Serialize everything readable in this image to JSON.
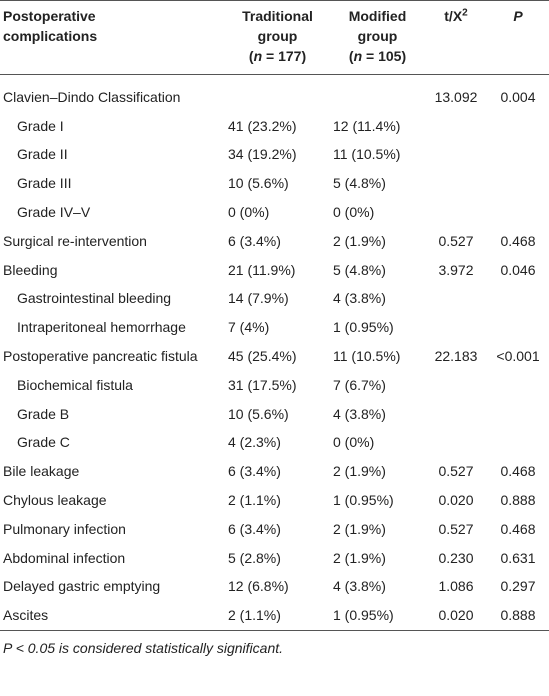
{
  "header": [
    [
      "Postoperative",
      "complications"
    ],
    [
      "Traditional",
      "group",
      [
        "(",
        "n",
        " = 177)"
      ]
    ],
    [
      "Modified",
      "group",
      [
        "(",
        "n",
        " = 105)"
      ]
    ],
    [
      [
        "t/X",
        "2"
      ]
    ],
    [
      "P"
    ]
  ],
  "rows": [
    {
      "label": "Clavien–Dindo Classification",
      "indent": false,
      "cells": [
        null,
        null,
        "13.092",
        "0.004"
      ]
    },
    {
      "label": "Grade I",
      "indent": true,
      "cells": [
        "41 (23.2%)",
        "12 (11.4%)",
        null,
        null
      ]
    },
    {
      "label": "Grade II",
      "indent": true,
      "cells": [
        "34 (19.2%)",
        "11 (10.5%)",
        null,
        null
      ]
    },
    {
      "label": "Grade III",
      "indent": true,
      "cells": [
        "10 (5.6%)",
        "5 (4.8%)",
        null,
        null
      ]
    },
    {
      "label": "Grade IV–V",
      "indent": true,
      "cells": [
        "0 (0%)",
        "0 (0%)",
        null,
        null
      ]
    },
    {
      "label": "Surgical re-intervention",
      "indent": false,
      "cells": [
        "6 (3.4%)",
        "2 (1.9%)",
        "0.527",
        "0.468"
      ]
    },
    {
      "label": "Bleeding",
      "indent": false,
      "cells": [
        "21 (11.9%)",
        "5 (4.8%)",
        "3.972",
        "0.046"
      ]
    },
    {
      "label": "Gastrointestinal bleeding",
      "indent": true,
      "cells": [
        "14 (7.9%)",
        "4 (3.8%)",
        null,
        null
      ]
    },
    {
      "label": "Intraperitoneal hemorrhage",
      "indent": true,
      "cells": [
        "7 (4%)",
        "1 (0.95%)",
        null,
        null
      ]
    },
    {
      "label": "Postoperative pancreatic fistula",
      "indent": false,
      "cells": [
        "45 (25.4%)",
        "11 (10.5%)",
        "22.183",
        "<0.001"
      ]
    },
    {
      "label": "Biochemical fistula",
      "indent": true,
      "cells": [
        "31 (17.5%)",
        "7 (6.7%)",
        null,
        null
      ]
    },
    {
      "label": "Grade B",
      "indent": true,
      "cells": [
        "10 (5.6%)",
        "4 (3.8%)",
        null,
        null
      ]
    },
    {
      "label": "Grade C",
      "indent": true,
      "cells": [
        "4 (2.3%)",
        "0 (0%)",
        null,
        null
      ]
    },
    {
      "label": "Bile leakage",
      "indent": false,
      "cells": [
        "6 (3.4%)",
        "2 (1.9%)",
        "0.527",
        "0.468"
      ]
    },
    {
      "label": "Chylous leakage",
      "indent": false,
      "cells": [
        "2 (1.1%)",
        "1 (0.95%)",
        "0.020",
        "0.888"
      ]
    },
    {
      "label": "Pulmonary infection",
      "indent": false,
      "cells": [
        "6 (3.4%)",
        "2 (1.9%)",
        "0.527",
        "0.468"
      ]
    },
    {
      "label": "Abdominal infection",
      "indent": false,
      "cells": [
        "5 (2.8%)",
        "2 (1.9%)",
        "0.230",
        "0.631"
      ]
    },
    {
      "label": "Delayed gastric emptying",
      "indent": false,
      "cells": [
        "12 (6.8%)",
        "4 (3.8%)",
        "1.086",
        "0.297"
      ]
    },
    {
      "label": "Ascites",
      "indent": false,
      "cells": [
        "2 (1.1%)",
        "1 (0.95%)",
        "0.020",
        "0.888"
      ]
    }
  ],
  "footnote": "P < 0.05 is considered statistically significant."
}
